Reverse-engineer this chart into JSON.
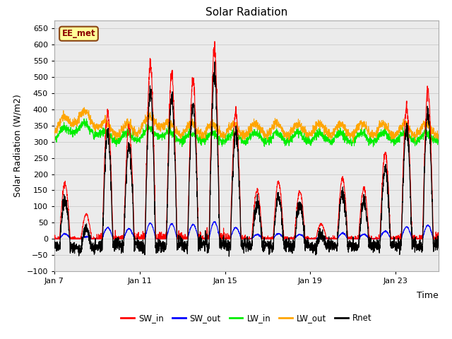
{
  "title": "Solar Radiation",
  "xlabel": "Time",
  "ylabel": "Solar Radiation (W/m2)",
  "ylim": [
    -100,
    675
  ],
  "yticks": [
    -100,
    -50,
    0,
    50,
    100,
    150,
    200,
    250,
    300,
    350,
    400,
    450,
    500,
    550,
    600,
    650
  ],
  "xtick_positions": [
    0,
    4,
    8,
    12,
    16
  ],
  "xtick_labels": [
    "Jan 7",
    "Jan 11",
    "Jan 15",
    "Jan 19",
    "Jan 23"
  ],
  "watermark_text": "EE_met",
  "colors": {
    "SW_in": "#ff0000",
    "SW_out": "#0000ff",
    "LW_in": "#00ee00",
    "LW_out": "#ffa500",
    "Rnet": "#000000"
  },
  "plot_bg": "#ebebeb",
  "fig_bg": "#ffffff",
  "grid_color": "#d0d0d0",
  "n_days": 18,
  "points_per_day": 144,
  "day_scales_sw": [
    170,
    75,
    390,
    345,
    540,
    510,
    490,
    585,
    390,
    148,
    175,
    148,
    45,
    185,
    155,
    265,
    408,
    460
  ],
  "lw_out_base": 338,
  "lw_in_base": 314,
  "lw_amplitude": 18,
  "lw_noise": 7,
  "rnet_night": -28
}
